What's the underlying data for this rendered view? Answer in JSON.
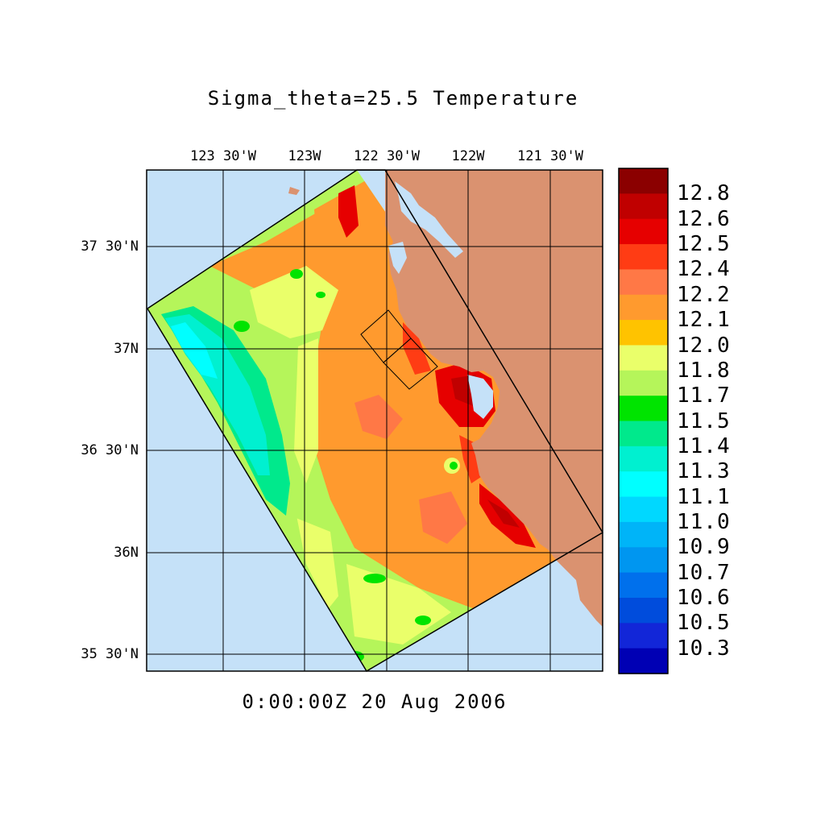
{
  "title": "Sigma_theta=25.5 Temperature",
  "timestamp": "0:00:00Z  20 Aug 2006",
  "map": {
    "lon_ticks": [
      "123 30'W",
      "123W",
      "122 30'W",
      "122W",
      "121 30'W"
    ],
    "lat_ticks": [
      "37 30'N",
      "37N",
      "36 30'N",
      "36N",
      "35 30'N"
    ],
    "colors": {
      "ocean": "#c5e1f8",
      "land": "#da9270",
      "frame": "#000000"
    }
  },
  "colorbar": {
    "labels": [
      "12.8",
      "12.6",
      "12.5",
      "12.4",
      "12.2",
      "12.1",
      "12.0",
      "11.8",
      "11.7",
      "11.5",
      "11.4",
      "11.3",
      "11.1",
      "11.0",
      "10.9",
      "10.7",
      "10.6",
      "10.5",
      "10.3"
    ],
    "colors": [
      "#8b0000",
      "#c00000",
      "#e60000",
      "#ff3c14",
      "#ff7846",
      "#ff9a2e",
      "#ffc300",
      "#eaff6a",
      "#b5f55a",
      "#00e400",
      "#00e98c",
      "#00f0d0",
      "#00ffff",
      "#00d8ff",
      "#00b4f8",
      "#0096f0",
      "#0070ec",
      "#004cdc",
      "#1226d8",
      "#0000b4"
    ]
  }
}
